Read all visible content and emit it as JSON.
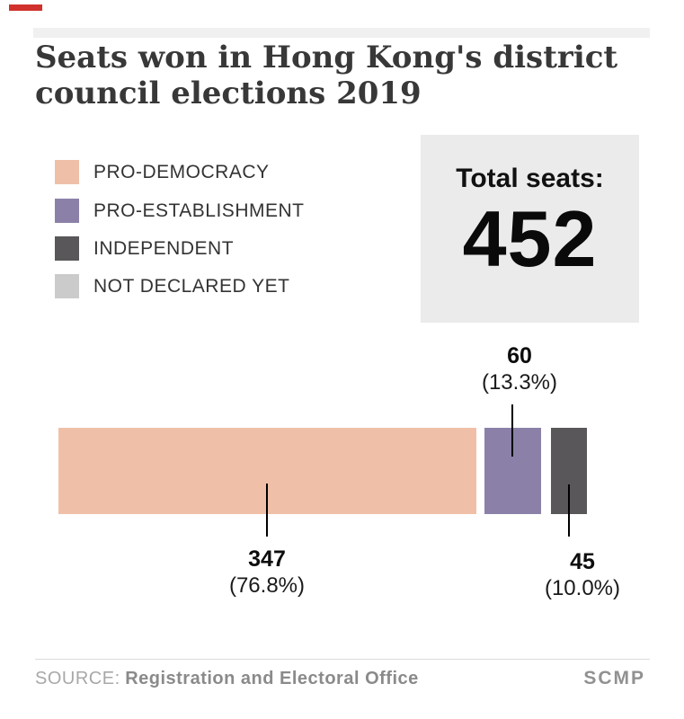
{
  "title": {
    "line1": "Seats won in Hong Kong's district",
    "line2": "council elections 2019"
  },
  "legend": {
    "items": [
      {
        "label": "PRO-DEMOCRACY",
        "color": "#efc0a7"
      },
      {
        "label": "PRO-ESTABLISHMENT",
        "color": "#8b81a8"
      },
      {
        "label": "INDEPENDENT",
        "color": "#595759"
      },
      {
        "label": "NOT DECLARED YET",
        "color": "#cbcbcb"
      }
    ]
  },
  "total_box": {
    "label": "Total seats:",
    "value": "452"
  },
  "annotations": {
    "pro_establishment": {
      "value": "60",
      "percent": "(13.3%)"
    },
    "pro_democracy": {
      "value": "347",
      "percent": "(76.8%)"
    },
    "independent": {
      "value": "45",
      "percent": "(10.0%)"
    }
  },
  "footer": {
    "source_label": "SOURCE:",
    "source_name": "Registration and Electoral Office",
    "credit": "SCMP"
  },
  "colors": {
    "accent_red": "#d0312d",
    "header_rule": "#f0f0f0",
    "total_box_bg": "#ebebeb",
    "pro_democracy": "#efc0a7",
    "pro_establishment": "#8b81a8",
    "independent": "#595759",
    "not_declared": "#cbcbcb"
  },
  "chart_data": {
    "type": "bar",
    "orientation": "horizontal-stacked",
    "title": "Seats won in Hong Kong's district council elections 2019",
    "categories": [
      "PRO-DEMOCRACY",
      "PRO-ESTABLISHMENT",
      "INDEPENDENT",
      "NOT DECLARED YET"
    ],
    "values": [
      347,
      60,
      45,
      0
    ],
    "percentages": [
      76.8,
      13.3,
      10.0,
      0
    ],
    "total_seats": 452,
    "colors": [
      "#efc0a7",
      "#8b81a8",
      "#595759",
      "#cbcbcb"
    ],
    "legend_position": "top-left",
    "grid": false,
    "source": "Registration and Electoral Office",
    "credit": "SCMP"
  }
}
